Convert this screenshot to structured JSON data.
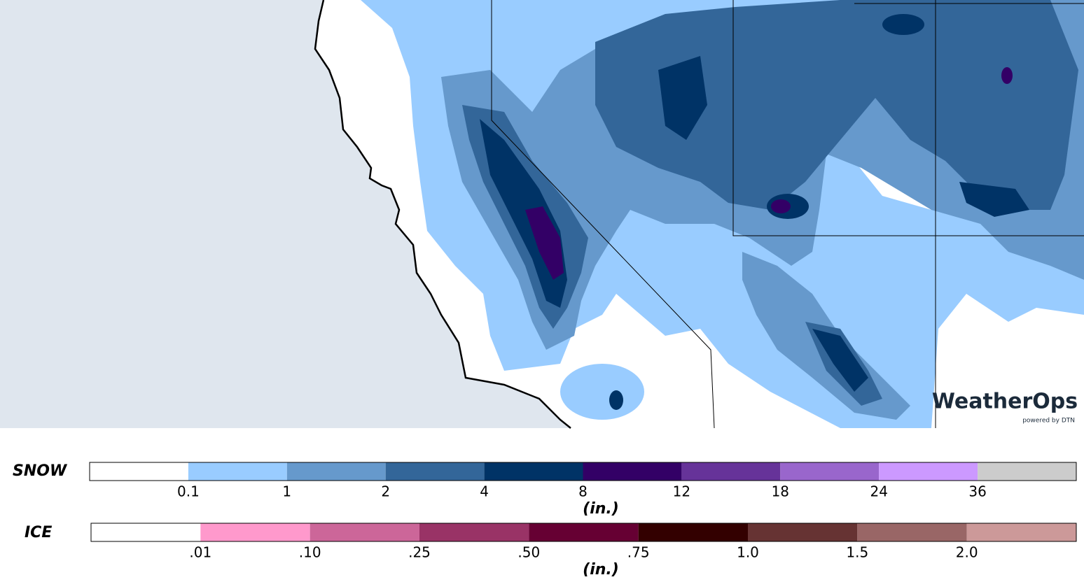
{
  "map": {
    "logo": "WeatherOps",
    "logo_sub": "powered by DTN"
  },
  "legend": {
    "snow": {
      "label": "SNOW",
      "unit": "(in.)",
      "ticks": [
        "0.1",
        "1",
        "2",
        "4",
        "8",
        "12",
        "18",
        "24",
        "36"
      ],
      "colors": [
        "#ffffff",
        "#99ccff",
        "#6699cc",
        "#336699",
        "#003366",
        "#330066",
        "#663399",
        "#9966cc",
        "#cc99ff",
        "#cccccc"
      ]
    },
    "ice": {
      "label": "ICE",
      "unit": "(in.)",
      "ticks": [
        ".01",
        ".10",
        ".25",
        ".50",
        ".75",
        "1.0",
        "1.5",
        "2.0"
      ],
      "colors": [
        "#ffffff",
        "#ff99cc",
        "#cc6699",
        "#993366",
        "#660033",
        "#330000",
        "#663333",
        "#996666",
        "#cc9999"
      ]
    }
  }
}
